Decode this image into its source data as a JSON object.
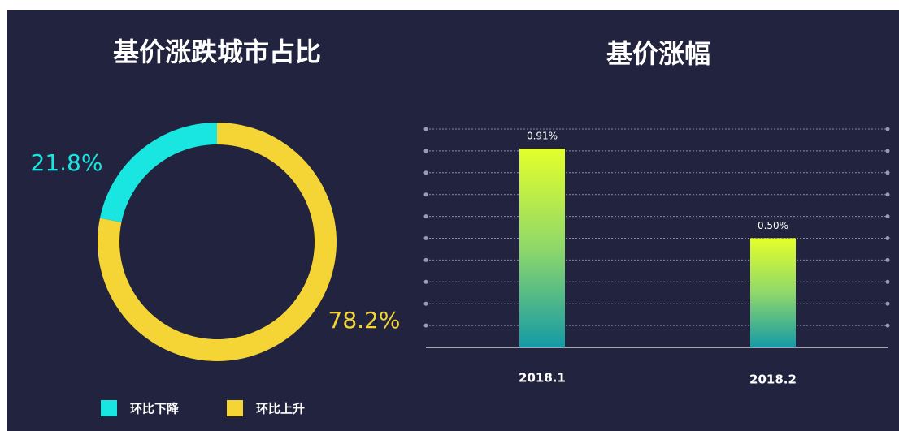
{
  "chart_data": [
    {
      "type": "pie",
      "title": "基价涨跌城市占比",
      "categories": [
        "环比下降",
        "环比上升"
      ],
      "values": [
        21.8,
        78.2
      ],
      "value_labels": [
        "21.8%",
        "78.2%"
      ],
      "colors": [
        "#19e6e0",
        "#f4d535"
      ],
      "donut": true,
      "legend": "bottom-left"
    },
    {
      "type": "bar",
      "title": "基价涨幅",
      "categories": [
        "2018.1",
        "2018.2"
      ],
      "values": [
        0.91,
        0.5
      ],
      "value_labels": [
        "0.91%",
        "0.50%"
      ],
      "color_top": "#e4ff2a",
      "color_bottom": "#159aa6",
      "ylim": [
        0,
        1
      ],
      "yticks": [
        0.1,
        0.2,
        0.3,
        0.4,
        0.5,
        0.6,
        0.7,
        0.8,
        0.9,
        1.0
      ],
      "grid": true
    }
  ]
}
